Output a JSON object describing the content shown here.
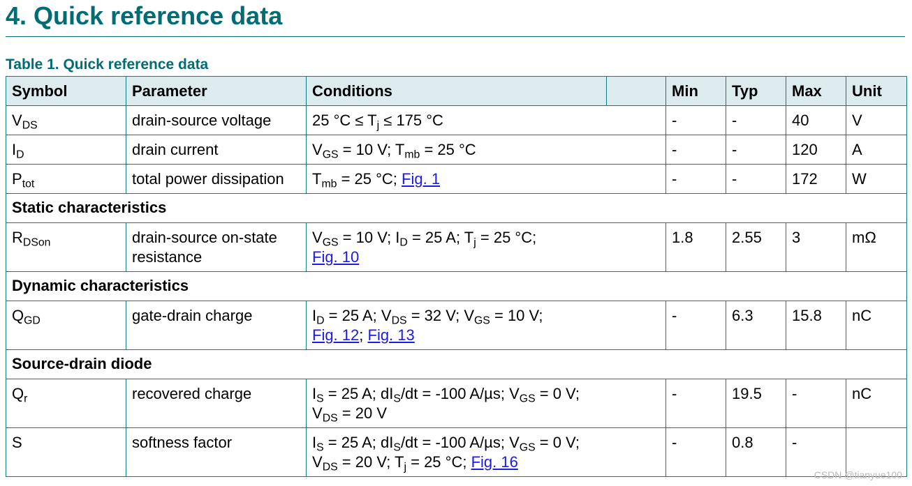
{
  "section": {
    "number": "4.",
    "title": "Quick reference data"
  },
  "table": {
    "caption": "Table 1. Quick reference data",
    "headers": {
      "symbol": "Symbol",
      "parameter": "Parameter",
      "conditions": "Conditions",
      "min": "Min",
      "typ": "Typ",
      "max": "Max",
      "unit": "Unit"
    },
    "rows": [
      {
        "symbol": "V",
        "symbol_sub": "DS",
        "parameter": "drain-source voltage",
        "min": "-",
        "typ": "-",
        "max": "40",
        "unit": "V"
      },
      {
        "symbol": "I",
        "symbol_sub": "D",
        "parameter": "drain current",
        "min": "-",
        "typ": "-",
        "max": "120",
        "unit": "A"
      },
      {
        "symbol": "P",
        "symbol_sub": "tot",
        "parameter": "total power dissipation",
        "min": "-",
        "typ": "-",
        "max": "172",
        "unit": "W"
      },
      {
        "symbol": "R",
        "symbol_sub": "DSon",
        "parameter": "drain-source on-state resistance",
        "min": "1.8",
        "typ": "2.55",
        "max": "3",
        "unit": "mΩ"
      },
      {
        "symbol": "Q",
        "symbol_sub": "GD",
        "parameter": "gate-drain charge",
        "min": "-",
        "typ": "6.3",
        "max": "15.8",
        "unit": "nC"
      },
      {
        "symbol": "Q",
        "symbol_sub": "r",
        "parameter": "recovered charge",
        "min": "-",
        "typ": "19.5",
        "max": "-",
        "unit": "nC"
      },
      {
        "symbol": "S",
        "symbol_sub": "",
        "parameter": "softness factor",
        "min": "-",
        "typ": "0.8",
        "max": "-",
        "unit": ""
      }
    ],
    "groups": {
      "static": "Static characteristics",
      "dynamic": "Dynamic characteristics",
      "diode": "Source-drain diode"
    },
    "conditions": {
      "vds": {
        "a": "25 °C ≤  T",
        "a_sub": "j",
        "b": " ≤  175 °C"
      },
      "id": {
        "a": "V",
        "a_sub": "GS",
        "b": " = 10 V; T",
        "b_sub": "mb",
        "c": " = 25 °C"
      },
      "ptot": {
        "a": "T",
        "a_sub": "mb",
        "b": " = 25 °C; ",
        "link": "Fig. 1"
      },
      "rdson": {
        "a": "V",
        "a_sub": "GS",
        "b": " = 10 V; I",
        "b_sub": "D",
        "c": " = 25 A; T",
        "c_sub": "j",
        "d": " = 25 °C;",
        "link": "Fig. 10"
      },
      "qgd": {
        "a": "I",
        "a_sub": "D",
        "b": " = 25 A; V",
        "b_sub": "DS",
        "c": " = 32 V; V",
        "c_sub": "GS",
        "d": " = 10 V;",
        "link1": "Fig. 12",
        "sep": "; ",
        "link2": "Fig. 13"
      },
      "qr": {
        "a": "I",
        "a_sub": "S",
        "b": " = 25 A; dI",
        "b_sub": "S",
        "c": "/dt = -100 A/µs; V",
        "c_sub": "GS",
        "d": " = 0 V;",
        "e": "V",
        "e_sub": "DS",
        "f": " = 20 V"
      },
      "s": {
        "a": "I",
        "a_sub": "S",
        "b": " = 25 A; dI",
        "b_sub": "S",
        "c": "/dt = -100 A/µs; V",
        "c_sub": "GS",
        "d": " = 0 V;",
        "e": "V",
        "e_sub": "DS",
        "f": " = 20 V; T",
        "f_sub": "j",
        "g": " = 25 °C; ",
        "link": "Fig. 16"
      }
    }
  },
  "watermark": "CSDN @tianyue100"
}
